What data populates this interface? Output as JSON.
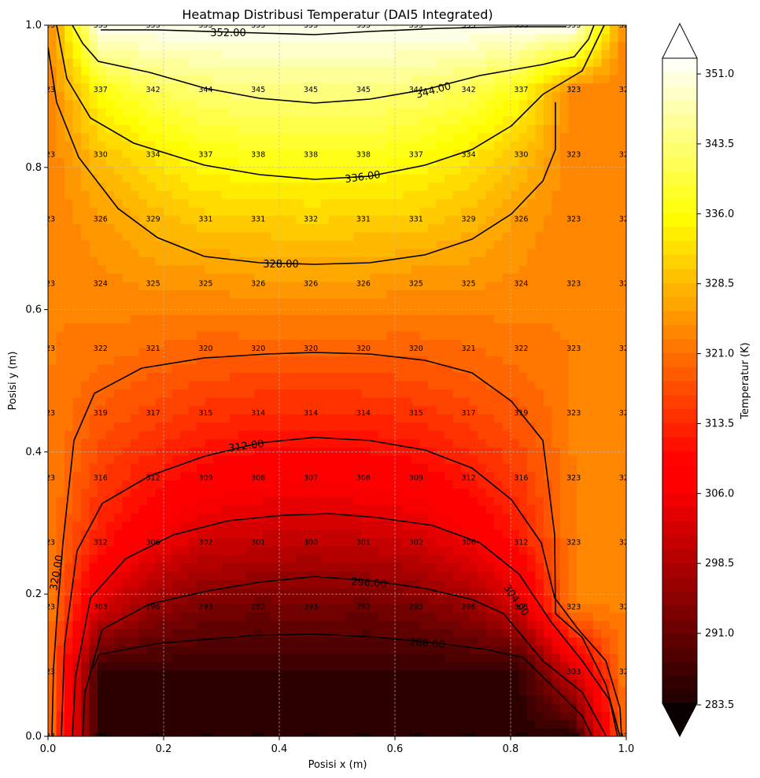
{
  "chart_data": {
    "type": "heatmap",
    "title": "Heatmap Distribusi Temperatur (DAI5 Integrated)",
    "xlabel": "Posisi x (m)",
    "ylabel": "Posisi y (m)",
    "xlim": [
      0.0,
      1.0
    ],
    "ylim": [
      0.0,
      1.0
    ],
    "x_ticks": [
      "0.0",
      "0.2",
      "0.4",
      "0.6",
      "0.8",
      "1.0"
    ],
    "y_ticks": [
      "0.0",
      "0.2",
      "0.4",
      "0.6",
      "0.8",
      "1.0"
    ],
    "grid": true,
    "x": [
      0.0,
      0.0909,
      0.1818,
      0.2727,
      0.3636,
      0.4545,
      0.5455,
      0.6364,
      0.7273,
      0.8182,
      0.9091,
      1.0
    ],
    "y": [
      0.0,
      0.0909,
      0.1818,
      0.2727,
      0.3636,
      0.4545,
      0.5455,
      0.6364,
      0.7273,
      0.8182,
      0.9091,
      1.0
    ],
    "values": [
      [
        "323",
        "285",
        "285",
        "285",
        "285",
        "285",
        "285",
        "285",
        "285",
        "285",
        "285",
        "323"
      ],
      [
        "323",
        "",
        "",
        "",
        "",
        "",
        "",
        "",
        "",
        "",
        "303",
        "323"
      ],
      [
        "323",
        "303",
        "296",
        "293",
        "292",
        "293",
        "292",
        "293",
        "296",
        "303",
        "323",
        "323"
      ],
      [
        "323",
        "312",
        "306",
        "302",
        "301",
        "300",
        "301",
        "302",
        "306",
        "312",
        "323",
        "323"
      ],
      [
        "323",
        "316",
        "312",
        "309",
        "308",
        "307",
        "308",
        "309",
        "312",
        "316",
        "323",
        "323"
      ],
      [
        "323",
        "319",
        "317",
        "315",
        "314",
        "314",
        "314",
        "315",
        "317",
        "319",
        "323",
        "323"
      ],
      [
        "323",
        "322",
        "321",
        "320",
        "320",
        "320",
        "320",
        "320",
        "321",
        "322",
        "323",
        "323"
      ],
      [
        "323",
        "324",
        "325",
        "325",
        "326",
        "326",
        "326",
        "325",
        "325",
        "324",
        "323",
        "323"
      ],
      [
        "323",
        "326",
        "329",
        "331",
        "331",
        "332",
        "331",
        "331",
        "329",
        "326",
        "323",
        "323"
      ],
      [
        "323",
        "330",
        "334",
        "337",
        "338",
        "338",
        "338",
        "337",
        "334",
        "330",
        "323",
        "323"
      ],
      [
        "323",
        "337",
        "342",
        "344",
        "345",
        "345",
        "345",
        "344",
        "342",
        "337",
        "323",
        "323"
      ],
      [
        "323",
        "353",
        "353",
        "353",
        "353",
        "353",
        "353",
        "353",
        "353",
        "353",
        "353",
        "323"
      ]
    ],
    "contour_labels": [
      "288.00",
      "296.00",
      "304.00",
      "312.00",
      "320.00",
      "328.00",
      "336.00",
      "344.00",
      "352.00"
    ],
    "colorbar": {
      "label": "Temperatur (K)",
      "ticks": [
        "283.5",
        "291.0",
        "298.5",
        "306.0",
        "313.5",
        "321.0",
        "328.5",
        "336.0",
        "343.5",
        "351.0"
      ],
      "range": [
        283.5,
        353.5
      ],
      "extend": "both"
    },
    "colormap": "hot"
  }
}
